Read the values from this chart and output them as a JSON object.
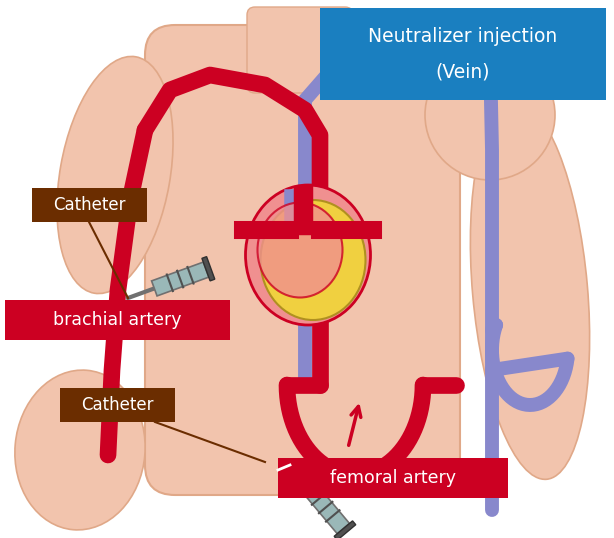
{
  "bg_color": "#ffffff",
  "body_color": "#f2c4ad",
  "body_edge_color": "#e0a888",
  "artery_color": "#cc0022",
  "vein_color": "#8888cc",
  "heart_pink": "#f09090",
  "heart_yellow": "#f0d040",
  "heart_red": "#cc0022",
  "catheter_box_color": "#6b2d00",
  "artery_label_color": "#cc0022",
  "neutralizer_box_color": "#1a7fc0",
  "neutralizer_text_line1": "Neutralizer injection",
  "neutralizer_text_line2": "(Vein)",
  "catheter_text": "Catheter",
  "brachial_text": "brachial artery",
  "femoral_text": "femoral artery",
  "lw_artery": 12,
  "lw_vein": 10,
  "syringe_body_color": "#9ab8b8",
  "syringe_tip_color": "#707070",
  "syringe_plunger_color": "#505050"
}
